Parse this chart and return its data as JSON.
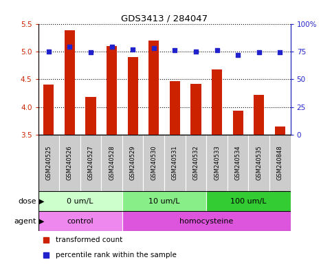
{
  "title": "GDS3413 / 284047",
  "samples": [
    "GSM240525",
    "GSM240526",
    "GSM240527",
    "GSM240528",
    "GSM240529",
    "GSM240530",
    "GSM240531",
    "GSM240532",
    "GSM240533",
    "GSM240534",
    "GSM240535",
    "GSM240848"
  ],
  "transformed_counts": [
    4.4,
    5.38,
    4.18,
    5.1,
    4.9,
    5.2,
    4.47,
    4.42,
    4.68,
    3.93,
    4.22,
    3.65
  ],
  "percentile_ranks": [
    75,
    79,
    74,
    79,
    77,
    78,
    76,
    75,
    76,
    72,
    74,
    74
  ],
  "bar_color": "#cc2200",
  "dot_color": "#2222cc",
  "ylim_left": [
    3.5,
    5.5
  ],
  "ylim_right": [
    0,
    100
  ],
  "yticks_left": [
    3.5,
    4.0,
    4.5,
    5.0,
    5.5
  ],
  "yticks_right": [
    0,
    25,
    50,
    75,
    100
  ],
  "ytick_labels_right": [
    "0",
    "25",
    "50",
    "75",
    "100%"
  ],
  "dose_groups": [
    {
      "label": "0 um/L",
      "start": 0,
      "end": 4,
      "color": "#ccffcc"
    },
    {
      "label": "10 um/L",
      "start": 4,
      "end": 8,
      "color": "#88ee88"
    },
    {
      "label": "100 um/L",
      "start": 8,
      "end": 12,
      "color": "#33cc33"
    }
  ],
  "agent_groups": [
    {
      "label": "control",
      "start": 0,
      "end": 4,
      "color": "#ee88ee"
    },
    {
      "label": "homocysteine",
      "start": 4,
      "end": 12,
      "color": "#dd55dd"
    }
  ],
  "dose_label": "dose",
  "agent_label": "agent",
  "legend_bar_label": "transformed count",
  "legend_dot_label": "percentile rank within the sample",
  "bg_color": "#ffffff",
  "sample_bg_color": "#cccccc",
  "grid_color": "#000000",
  "bar_width": 0.5
}
